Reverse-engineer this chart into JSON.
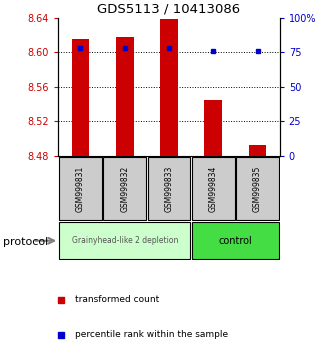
{
  "title": "GDS5113 / 10413086",
  "samples": [
    "GSM999831",
    "GSM999832",
    "GSM999833",
    "GSM999834",
    "GSM999835"
  ],
  "red_values": [
    8.615,
    8.618,
    8.638,
    8.545,
    8.492
  ],
  "blue_values": [
    78,
    78,
    78,
    76,
    76
  ],
  "y_min": 8.48,
  "y_max": 8.64,
  "y_ticks": [
    8.48,
    8.52,
    8.56,
    8.6,
    8.64
  ],
  "y2_tick_labels": [
    "0",
    "25",
    "50",
    "75",
    "100%"
  ],
  "y2_ticks": [
    0,
    25,
    50,
    75,
    100
  ],
  "group1_color": "#ccffcc",
  "group2_color": "#44dd44",
  "group1_label": "Grainyhead-like 2 depletion",
  "group2_label": "control",
  "group1_samples": [
    0,
    1,
    2
  ],
  "group2_samples": [
    3,
    4
  ],
  "red_color": "#cc0000",
  "blue_color": "#0000cc",
  "bar_bottom": 8.48,
  "legend_red": "transformed count",
  "legend_blue": "percentile rank within the sample",
  "protocol_label": "protocol",
  "bar_width": 0.4
}
